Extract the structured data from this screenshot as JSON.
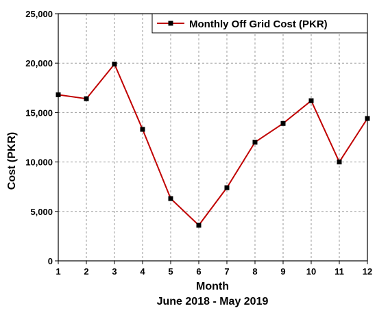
{
  "chart_data": {
    "type": "line",
    "title": "",
    "xlabel": "Month",
    "xlabel_sub": "June 2018 - May 2019",
    "ylabel": "Cost (PKR)",
    "x": [
      1,
      2,
      3,
      4,
      5,
      6,
      7,
      8,
      9,
      10,
      11,
      12
    ],
    "x_tick_labels": [
      "1",
      "2",
      "3",
      "4",
      "5",
      "6",
      "7",
      "8",
      "9",
      "10",
      "11",
      "12"
    ],
    "xlim": [
      1,
      12
    ],
    "ylim": [
      0,
      25000
    ],
    "y_ticks": [
      0,
      5000,
      10000,
      15000,
      20000,
      25000
    ],
    "y_tick_labels": [
      "0",
      "5,000",
      "10,000",
      "15,000",
      "20,000",
      "25,000"
    ],
    "grid": true,
    "legend_position": "top-right",
    "series": [
      {
        "name": "Monthly Off Grid Cost (PKR)",
        "color": "#c00000",
        "marker": "square",
        "marker_color": "#000000",
        "values": [
          16800,
          16400,
          19900,
          13300,
          6300,
          3600,
          7400,
          12000,
          13900,
          16200,
          10000,
          14400
        ]
      }
    ]
  }
}
